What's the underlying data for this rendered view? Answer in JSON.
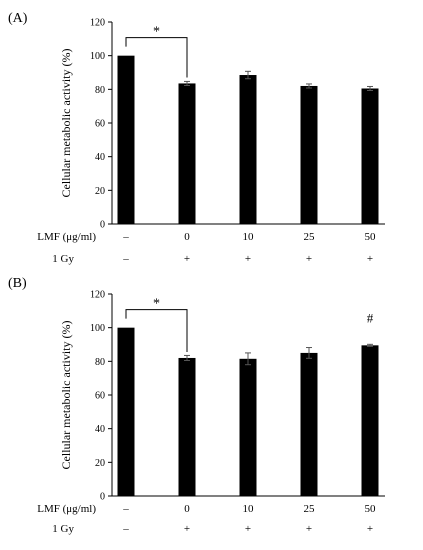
{
  "chart_data": [
    {
      "type": "bar",
      "panel_label": "(A)",
      "ylabel": "Cellular metabolic activity (%)",
      "ylim": [
        0,
        120
      ],
      "yticks": [
        0,
        20,
        40,
        60,
        80,
        100,
        120
      ],
      "grid": false,
      "condition_rows": [
        {
          "label": "LMF (μg/ml)",
          "values": [
            "–",
            "0",
            "10",
            "25",
            "50"
          ]
        },
        {
          "label": "1 Gy",
          "values": [
            "–",
            "+",
            "+",
            "+",
            "+"
          ]
        }
      ],
      "values": [
        100,
        83.5,
        88.5,
        82,
        80.5
      ],
      "errors": [
        0,
        1.2,
        2.2,
        1.2,
        1.2
      ],
      "bar_color": "#000000",
      "annotations": [
        {
          "text": "*",
          "type": "bracket",
          "from": 0,
          "to": 1
        }
      ]
    },
    {
      "type": "bar",
      "panel_label": "(B)",
      "ylabel": "Cellular metabolic activity (%)",
      "ylim": [
        0,
        120
      ],
      "yticks": [
        0,
        20,
        40,
        60,
        80,
        100,
        120
      ],
      "grid": false,
      "condition_rows": [
        {
          "label": "LMF (μg/ml)",
          "values": [
            "–",
            "0",
            "10",
            "25",
            "50"
          ]
        },
        {
          "label": "1 Gy",
          "values": [
            "–",
            "+",
            "+",
            "+",
            "+"
          ]
        }
      ],
      "values": [
        100,
        82,
        81.5,
        85,
        89.5
      ],
      "errors": [
        0,
        1.5,
        3.5,
        3.2,
        0.6
      ],
      "bar_color": "#000000",
      "annotations": [
        {
          "text": "*",
          "type": "bracket",
          "from": 0,
          "to": 1
        },
        {
          "text": "#",
          "type": "above-bar",
          "bar": 4
        }
      ]
    }
  ]
}
